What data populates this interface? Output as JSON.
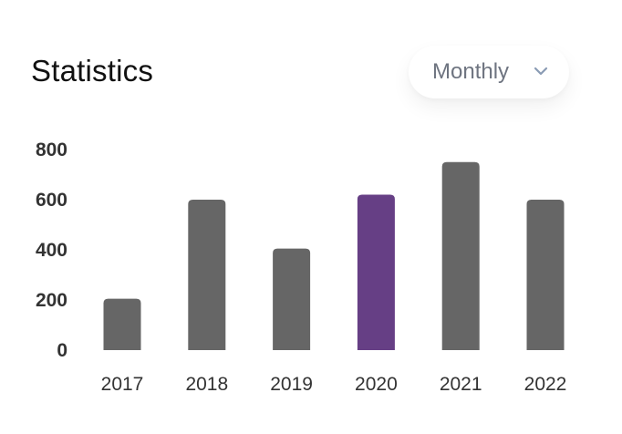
{
  "header": {
    "title": "Statistics"
  },
  "period_select": {
    "selected": "Monthly",
    "icon": "chevron-down-icon"
  },
  "colors": {
    "bar": "#666666",
    "highlight_bar": "#663f85",
    "highlight_label": "#2f7fd6",
    "tick_label": "#333333"
  },
  "chart_data": {
    "type": "bar",
    "title": "Statistics",
    "xlabel": "",
    "ylabel": "",
    "categories": [
      "2017",
      "2018",
      "2019",
      "2020",
      "2021",
      "2022"
    ],
    "values": [
      205,
      600,
      405,
      620,
      750,
      600
    ],
    "highlighted_category": "2020",
    "yticks": [
      "800",
      "600",
      "400",
      "200",
      "0"
    ],
    "ylim": [
      0,
      800
    ],
    "grid": false,
    "legend": "none"
  }
}
